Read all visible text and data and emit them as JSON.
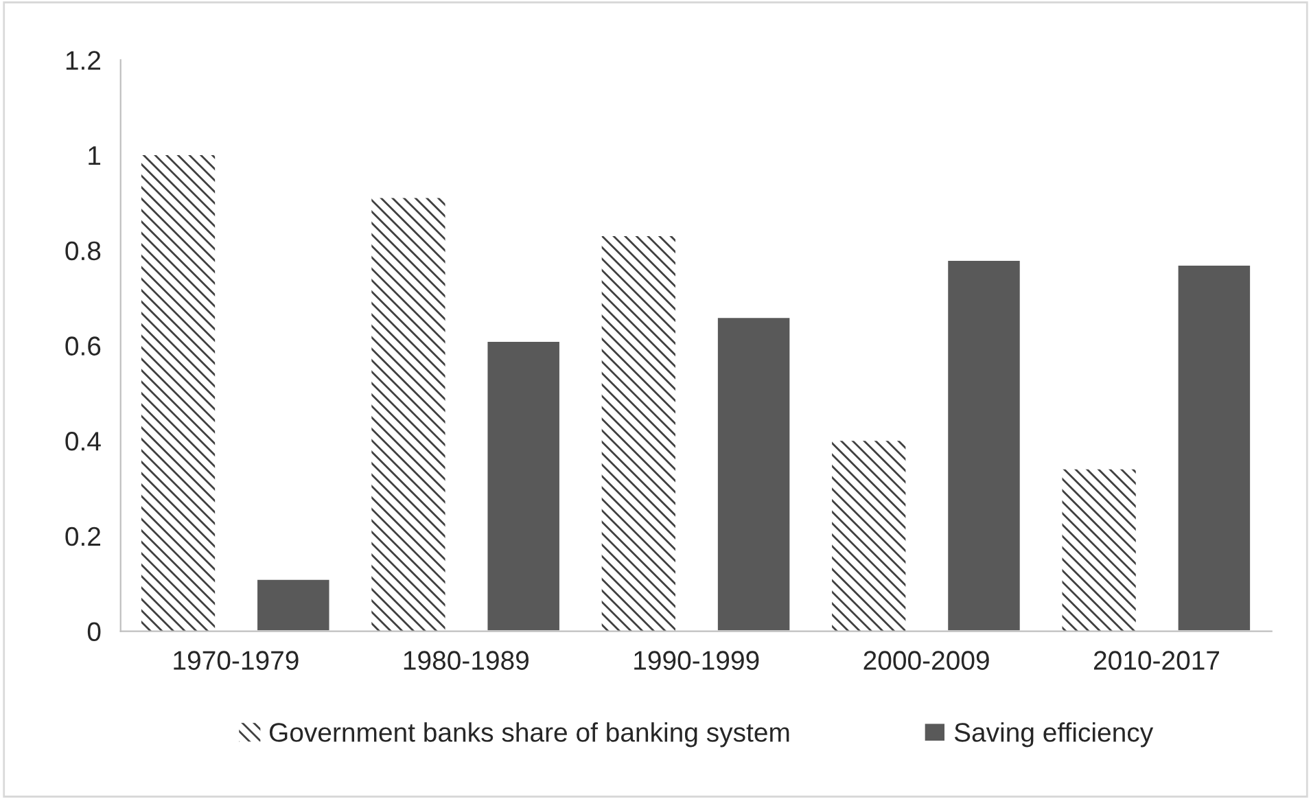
{
  "chart_data": {
    "type": "bar",
    "categories": [
      "1970-1979",
      "1980-1989",
      "1990-1999",
      "2000-2009",
      "2010-2017"
    ],
    "series": [
      {
        "name": "Government banks share of banking system",
        "color": "#404040",
        "values": [
          1.0,
          0.91,
          0.83,
          0.4,
          0.34
        ]
      },
      {
        "name": "Saving efficiency",
        "color": "#595959",
        "values": [
          0.11,
          0.61,
          0.66,
          0.78,
          0.77
        ]
      }
    ],
    "ylim": [
      0,
      1.2
    ],
    "yticks": [
      0,
      0.2,
      0.4,
      0.6,
      0.8,
      1,
      1.2
    ],
    "grid": false,
    "legend": "bottom"
  }
}
